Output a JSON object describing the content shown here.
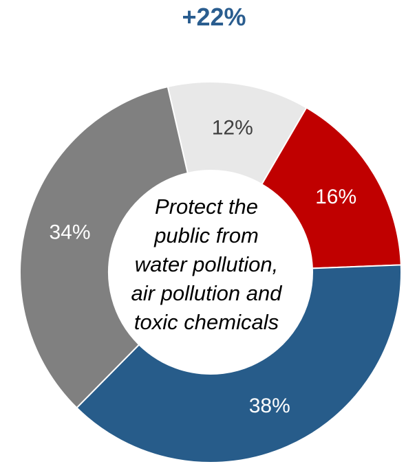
{
  "headline": "+22%",
  "center_label": [
    "Protect the",
    "public from",
    "water pollution,",
    "air pollution and",
    "toxic chemicals"
  ],
  "chart_data": {
    "type": "pie",
    "donut": true,
    "slices": [
      {
        "value": 12,
        "label": "12%",
        "color": "#e8e8e8",
        "label_color": "#404040"
      },
      {
        "value": 16,
        "label": "16%",
        "color": "#c00000",
        "label_color": "#ffffff"
      },
      {
        "value": 38,
        "label": "38%",
        "color": "#275c8a",
        "label_color": "#ffffff"
      },
      {
        "value": 34,
        "label": "34%",
        "color": "#808080",
        "label_color": "#ffffff"
      }
    ]
  }
}
